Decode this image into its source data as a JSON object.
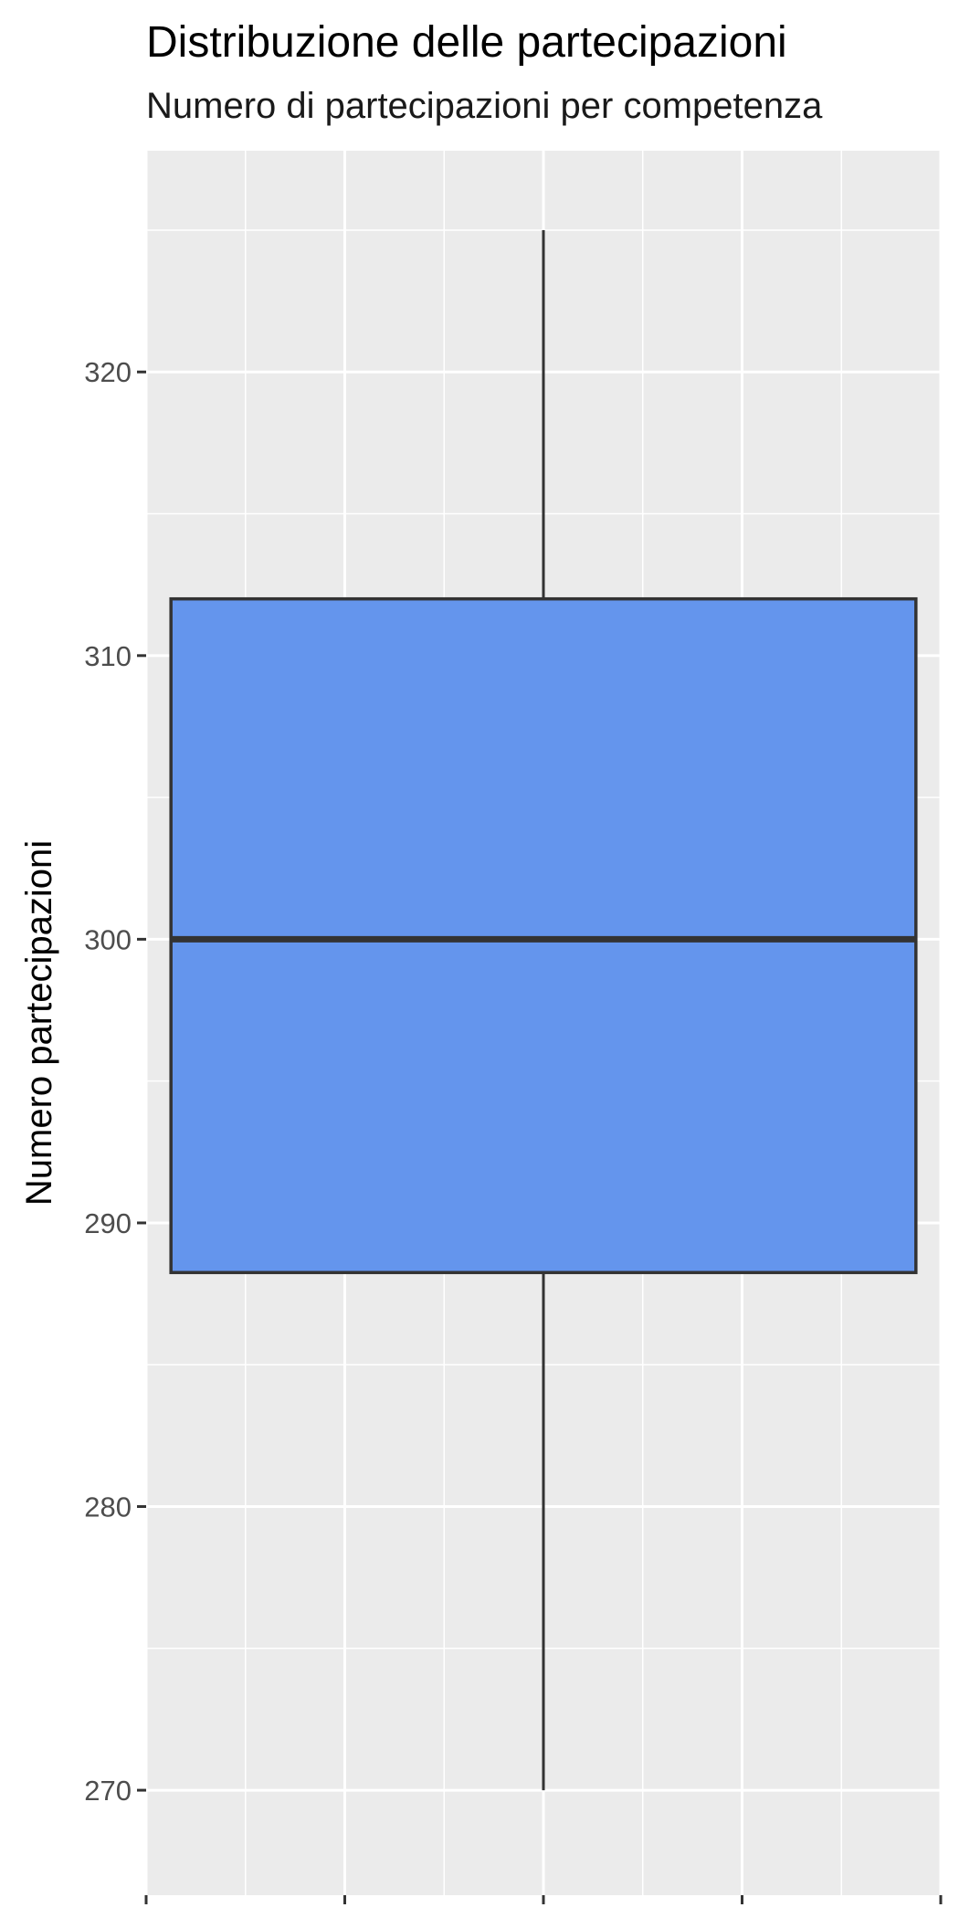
{
  "chart_data": {
    "type": "boxplot",
    "title": "Distribuzione delle partecipazioni",
    "subtitle": "Numero di partecipazioni per competenza",
    "xlabel": "",
    "ylabel": "Numero partecipazioni",
    "ylim": [
      266.3,
      327.8
    ],
    "yticks": [
      270,
      280,
      290,
      300,
      310,
      320
    ],
    "yticklabels": [
      "270",
      "280",
      "290",
      "300",
      "310",
      "320"
    ],
    "xlim": [
      -0.4,
      0.4
    ],
    "grid": true,
    "legend": "none",
    "boxes": [
      {
        "x": 0,
        "whisker_low": 270,
        "q1": 288.25,
        "median": 300,
        "q3": 312,
        "whisker_high": 325
      }
    ]
  },
  "colors": {
    "panel_background": "#ebebeb",
    "grid": "#ffffff",
    "box_fill": "#6495ed",
    "box_line": "#333333",
    "tick": "#333333",
    "tick_label": "#4d4d4d"
  }
}
